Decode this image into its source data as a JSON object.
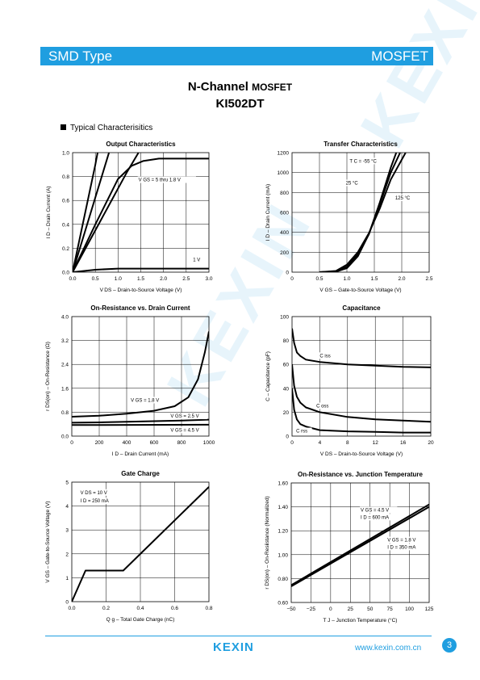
{
  "header": {
    "left": "SMD Type",
    "right": "MOSFET",
    "accent": "#1f9ee0"
  },
  "title": {
    "line1_a": "N-Channel",
    "line1_b": "MOSFET",
    "line2": "KI502DT"
  },
  "section": "Typical Characterisitics",
  "footer": {
    "logo": "KEXIN",
    "url": "www.kexin.com.cn",
    "page": "3"
  },
  "watermark": "KEXIN",
  "chart_data": [
    {
      "id": "output",
      "type": "line",
      "title": "Output Characteristics",
      "xlabel": "V DS – Drain-to-Source Voltage (V)",
      "ylabel": "I D – Drain Current (A)",
      "xlim": [
        0,
        3.0
      ],
      "ylim": [
        0,
        1.0
      ],
      "xticks": [
        "0.0",
        "0.5",
        "1.0",
        "1.5",
        "2.0",
        "2.5",
        "3.0"
      ],
      "yticks": [
        "0.0",
        "0.2",
        "0.4",
        "0.6",
        "0.8",
        "1.0"
      ],
      "annotations": [
        {
          "text": "V GS = 5 thru 1.8 V",
          "x": 1.45,
          "y": 0.76
        },
        {
          "text": "1 V",
          "x": 2.65,
          "y": 0.09
        }
      ],
      "series": [
        {
          "x": [
            0,
            0.5,
            0.55
          ],
          "y": [
            0,
            0.9,
            1.0
          ]
        },
        {
          "x": [
            0,
            0.8
          ],
          "y": [
            0,
            1.0
          ]
        },
        {
          "x": [
            0,
            1.2,
            1.45
          ],
          "y": [
            0,
            0.84,
            1.0
          ]
        },
        {
          "x": [
            0,
            0.5,
            1.0,
            1.3,
            1.55,
            1.9,
            3.0
          ],
          "y": [
            0,
            0.4,
            0.78,
            0.89,
            0.93,
            0.95,
            0.95
          ]
        },
        {
          "x": [
            0,
            0.5,
            1.0,
            3.0
          ],
          "y": [
            0,
            0.02,
            0.03,
            0.03
          ]
        }
      ]
    },
    {
      "id": "transfer",
      "type": "line",
      "title": "Transfer Characteristics",
      "xlabel": "V GS – Gate-to-Source Voltage (V)",
      "ylabel": "I D – Drain Current (mA)",
      "xlim": [
        0,
        2.5
      ],
      "ylim": [
        0,
        1200
      ],
      "xticks": [
        "0",
        "0.5",
        "1.0",
        "1.5",
        "2.0",
        "2.5"
      ],
      "yticks": [
        "0",
        "200",
        "400",
        "600",
        "800",
        "1000",
        "1200"
      ],
      "annotations": [
        {
          "text": "T C = -55 °C",
          "x": 1.05,
          "y": 1100
        },
        {
          "text": "25 °C",
          "x": 0.98,
          "y": 880
        },
        {
          "text": "125 °C",
          "x": 1.88,
          "y": 730
        }
      ],
      "series": [
        {
          "x": [
            0.5,
            0.8,
            1.0,
            1.2,
            1.4,
            1.6,
            1.8,
            1.9
          ],
          "y": [
            0,
            5,
            40,
            160,
            380,
            700,
            1050,
            1200
          ]
        },
        {
          "x": [
            0.5,
            0.8,
            1.0,
            1.2,
            1.4,
            1.6,
            1.8,
            1.97
          ],
          "y": [
            0,
            8,
            55,
            180,
            380,
            680,
            1000,
            1200
          ]
        },
        {
          "x": [
            0.5,
            0.8,
            1.0,
            1.2,
            1.4,
            1.6,
            1.8,
            2.07
          ],
          "y": [
            0,
            12,
            75,
            200,
            390,
            640,
            930,
            1200
          ]
        }
      ]
    },
    {
      "id": "onres",
      "type": "line",
      "title": "On-Resistance vs. Drain Current",
      "xlabel": "I D – Drain Current (mA)",
      "ylabel": "r DS(on) – On-Resistance (Ω)",
      "xlim": [
        0,
        1000
      ],
      "ylim": [
        0,
        4.0
      ],
      "xticks": [
        "0",
        "200",
        "400",
        "600",
        "800",
        "1000"
      ],
      "yticks": [
        "0.0",
        "0.8",
        "1.6",
        "2.4",
        "3.2",
        "4.0"
      ],
      "annotations": [
        {
          "text": "V GS = 1.8 V",
          "x": 430,
          "y": 1.15
        },
        {
          "text": "V GS = 2.5 V",
          "x": 720,
          "y": 0.62
        },
        {
          "text": "V GS = 4.5 V",
          "x": 720,
          "y": 0.15
        }
      ],
      "series": [
        {
          "x": [
            0,
            200,
            400,
            600,
            750,
            850,
            920,
            970,
            1000
          ],
          "y": [
            0.65,
            0.68,
            0.75,
            0.85,
            1.0,
            1.3,
            1.9,
            2.8,
            3.5
          ]
        },
        {
          "x": [
            0,
            200,
            400,
            600,
            800,
            1000
          ],
          "y": [
            0.45,
            0.46,
            0.48,
            0.5,
            0.52,
            0.55
          ]
        },
        {
          "x": [
            0,
            1000
          ],
          "y": [
            0.37,
            0.38
          ]
        }
      ]
    },
    {
      "id": "capacitance",
      "type": "line",
      "title": "Capacitance",
      "xlabel": "V DS – Drain-to-Source Voltage (V)",
      "ylabel": "C – Capacitance (pF)",
      "xlim": [
        0,
        20
      ],
      "ylim": [
        0,
        100
      ],
      "xticks": [
        "0",
        "4",
        "8",
        "12",
        "16",
        "20"
      ],
      "yticks": [
        "0",
        "20",
        "40",
        "60",
        "80",
        "100"
      ],
      "annotations": [
        {
          "text": "C iss",
          "x": 4.0,
          "y": 66
        },
        {
          "text": "C oss",
          "x": 3.5,
          "y": 24
        },
        {
          "text": "C rss",
          "x": 0.6,
          "y": 3
        }
      ],
      "series": [
        {
          "x": [
            0,
            0.3,
            0.7,
            1.2,
            2,
            4,
            8,
            12,
            16,
            20
          ],
          "y": [
            90,
            78,
            70,
            67,
            64,
            62,
            60,
            59,
            58,
            57.5
          ]
        },
        {
          "x": [
            0,
            0.3,
            0.7,
            1.2,
            2,
            4,
            8,
            12,
            16,
            20
          ],
          "y": [
            60,
            42,
            33,
            28,
            24,
            20,
            16,
            14,
            13,
            12
          ]
        },
        {
          "x": [
            0,
            0.3,
            0.7,
            1.2,
            2,
            4,
            8,
            12,
            16,
            20
          ],
          "y": [
            40,
            22,
            14,
            10,
            8,
            5,
            4,
            3.5,
            3,
            3
          ]
        }
      ]
    },
    {
      "id": "gatecharge",
      "type": "line",
      "title": "Gate Charge",
      "xlabel": "Q g – Total Gate Charge (nC)",
      "ylabel": "V GS – Gate-to-Source Voltage (V)",
      "xlim": [
        0,
        0.8
      ],
      "ylim": [
        0,
        5
      ],
      "xticks": [
        "0.0",
        "0.2",
        "0.4",
        "0.6",
        "0.8"
      ],
      "yticks": [
        "0",
        "1",
        "2",
        "3",
        "4",
        "5"
      ],
      "annotations": [
        {
          "text": "V DS = 10 V",
          "x": 0.05,
          "y": 4.5
        },
        {
          "text": "I D = 250 mA",
          "x": 0.05,
          "y": 4.15
        }
      ],
      "series": [
        {
          "x": [
            0,
            0.08,
            0.3,
            0.8
          ],
          "y": [
            0,
            1.3,
            1.3,
            4.8
          ]
        }
      ]
    },
    {
      "id": "onres_temp",
      "type": "line",
      "title": "On-Resistance vs. Junction Temperature",
      "xlabel": "T J – Junction Temperature (°C)",
      "ylabel": "r DS(on) – On-Resiistance (Normalized)",
      "xlim": [
        -50,
        125
      ],
      "ylim": [
        0.6,
        1.6
      ],
      "xticks": [
        "−50",
        "−25",
        "0",
        "25",
        "50",
        "75",
        "100",
        "125"
      ],
      "yticks": [
        "0.60",
        "0.80",
        "1.00",
        "1.20",
        "1.40",
        "1.60"
      ],
      "annotations": [
        {
          "text": "V GS = 4.5 V",
          "x": 38,
          "y": 1.36
        },
        {
          "text": "I D = 600 mA",
          "x": 38,
          "y": 1.3
        },
        {
          "text": "V GS = 1.8 V",
          "x": 72,
          "y": 1.11
        },
        {
          "text": "I D = 350 mA",
          "x": 72,
          "y": 1.05
        }
      ],
      "series": [
        {
          "x": [
            -50,
            125
          ],
          "y": [
            0.735,
            1.4
          ]
        },
        {
          "x": [
            -50,
            125
          ],
          "y": [
            0.745,
            1.42
          ]
        }
      ]
    }
  ]
}
